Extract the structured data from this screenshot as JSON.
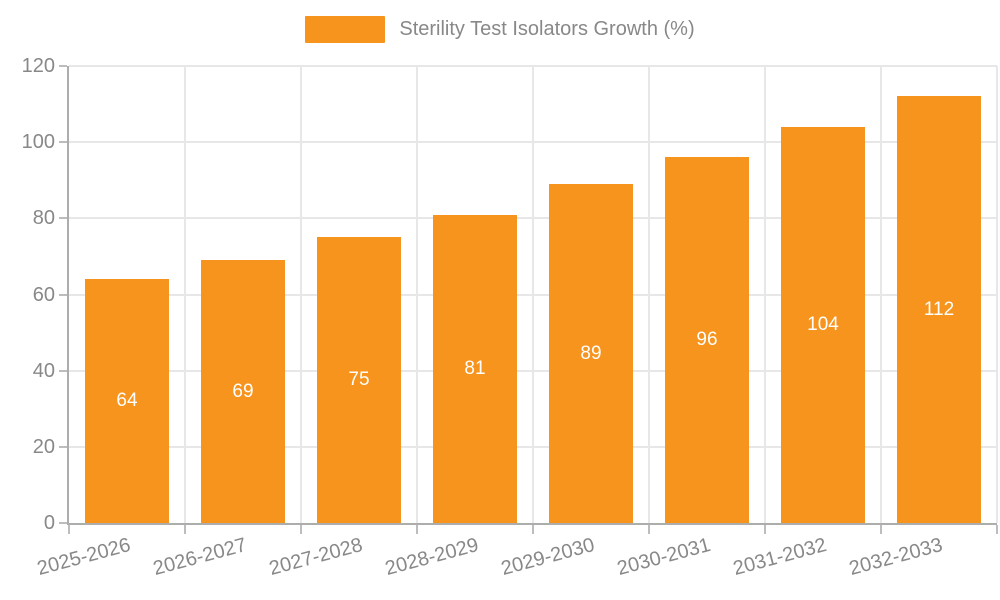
{
  "chart_data": {
    "type": "bar",
    "title": "Sterility Test Isolators Growth (%)",
    "categories": [
      "2025-2026",
      "2026-2027",
      "2027-2028",
      "2028-2029",
      "2029-2030",
      "2030-2031",
      "2031-2032",
      "2032-2033"
    ],
    "values": [
      64,
      69,
      75,
      81,
      89,
      96,
      104,
      112
    ],
    "xlabel": "",
    "ylabel": "",
    "ylim": [
      0,
      120
    ],
    "yticks": [
      0,
      20,
      40,
      60,
      80,
      100,
      120
    ],
    "grid": true,
    "legend_position": "top-center",
    "x_label_rotation_deg": -15,
    "value_labels": "inside-center",
    "colors": {
      "bar": "#F7941E",
      "value_label": "#FFFFFF",
      "axis_line": "#ADADAD",
      "tick_mark": "#BDBDBD",
      "gridline": "#E7E7E7",
      "text": "#888888"
    }
  }
}
